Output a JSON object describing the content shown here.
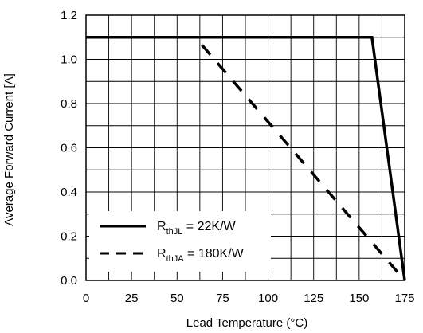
{
  "chart_data": {
    "type": "line",
    "title": "",
    "xlabel": "Lead Temperature (°C)",
    "ylabel": "Average Forward Current [A]",
    "xlim": [
      0,
      175
    ],
    "ylim": [
      0.0,
      1.2
    ],
    "xticks": [
      0,
      25,
      50,
      75,
      100,
      125,
      150,
      175
    ],
    "yticks": [
      0.0,
      0.2,
      0.4,
      0.6,
      0.8,
      1.0,
      1.2
    ],
    "x_tick_labels": [
      "0",
      "25",
      "50",
      "75",
      "100",
      "125",
      "150",
      "175"
    ],
    "y_tick_labels": [
      "0.0",
      "0.2",
      "0.4",
      "0.6",
      "0.8",
      "1.0",
      "1.2"
    ],
    "grid": true,
    "legend_position": "bottom-left",
    "series": [
      {
        "name_main": "R",
        "name_sub": "thJL",
        "name_rest": " = 22K/W",
        "style": "solid",
        "color": "#000000",
        "points": [
          [
            0,
            1.1
          ],
          [
            157,
            1.1
          ],
          [
            175,
            0.0
          ]
        ]
      },
      {
        "name_main": "R",
        "name_sub": "thJA",
        "name_rest": " = 180K/W",
        "style": "dashed",
        "color": "#000000",
        "points": [
          [
            0,
            1.1
          ],
          [
            60,
            1.1
          ],
          [
            175,
            0.0
          ]
        ]
      }
    ]
  }
}
